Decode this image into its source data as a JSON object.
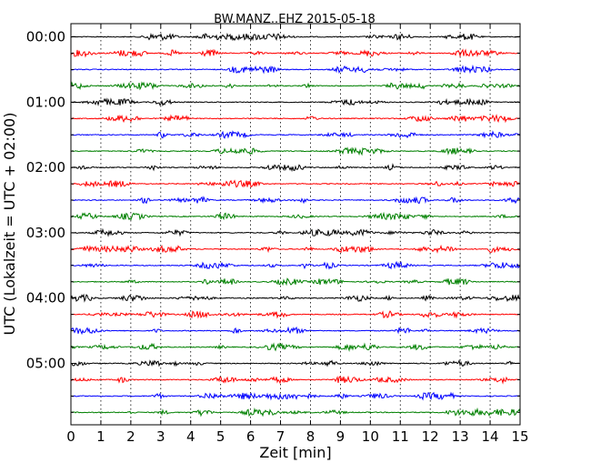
{
  "chart_data": {
    "type": "line",
    "title": "BW.MANZ..EHZ 2015-05-18",
    "xlabel": "Zeit  [min]",
    "ylabel": "UTC (Lokalzeit = UTC + 02:00)",
    "xlim": [
      0,
      15
    ],
    "x_ticks": [
      "0",
      "1",
      "2",
      "3",
      "4",
      "5",
      "6",
      "7",
      "8",
      "9",
      "10",
      "11",
      "12",
      "13",
      "14",
      "15"
    ],
    "y_ticks": [
      "00:00",
      "01:00",
      "02:00",
      "03:00",
      "04:00",
      "05:00"
    ],
    "grid": "vertical dotted",
    "trace_interval_minutes": 15,
    "trace_count": 24,
    "trace_colors": [
      "#000000",
      "#ff0000",
      "#0000ff",
      "#008000"
    ]
  }
}
